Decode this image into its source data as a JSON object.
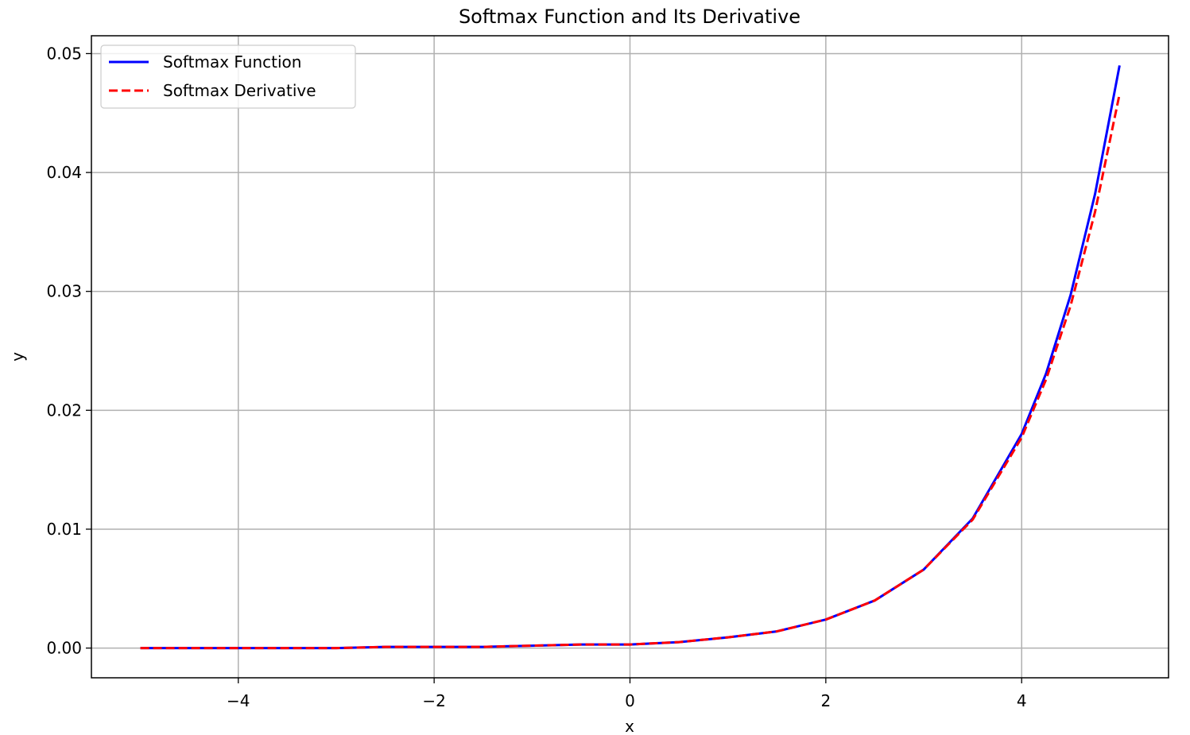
{
  "chart_data": {
    "type": "line",
    "title": "Softmax Function and Its Derivative",
    "xlabel": "x",
    "ylabel": "y",
    "xlim": [
      -5.5,
      5.5
    ],
    "ylim": [
      -0.0025,
      0.0515
    ],
    "xticks": [
      -4,
      -2,
      0,
      2,
      4
    ],
    "xtick_labels": [
      "−4",
      "−2",
      "0",
      "2",
      "4"
    ],
    "yticks": [
      0.0,
      0.01,
      0.02,
      0.03,
      0.04,
      0.05
    ],
    "ytick_labels": [
      "0.00",
      "0.01",
      "0.02",
      "0.03",
      "0.04",
      "0.05"
    ],
    "grid": true,
    "legend_position": "top-left",
    "x": [
      -5,
      -4.5,
      -4,
      -3.5,
      -3,
      -2.5,
      -2,
      -1.5,
      -1,
      -0.5,
      0,
      0.5,
      1,
      1.5,
      2,
      2.5,
      3,
      3.5,
      4,
      4.25,
      4.5,
      4.75,
      5
    ],
    "series": [
      {
        "name": "Softmax Function",
        "color": "#0000ff",
        "style": "solid",
        "values": [
          0.0,
          0.0,
          0.0,
          0.0,
          0.0,
          0.0001,
          0.0001,
          0.0001,
          0.0002,
          0.0003,
          0.0003,
          0.0005,
          0.0009,
          0.0014,
          0.0024,
          0.004,
          0.0066,
          0.0109,
          0.018,
          0.0231,
          0.0297,
          0.0382,
          0.049
        ]
      },
      {
        "name": "Softmax Derivative",
        "color": "#ff0000",
        "style": "dashed",
        "values": [
          0.0,
          0.0,
          0.0,
          0.0,
          0.0,
          0.0001,
          0.0001,
          0.0001,
          0.0002,
          0.0003,
          0.0003,
          0.0005,
          0.0009,
          0.0014,
          0.0024,
          0.004,
          0.0066,
          0.0108,
          0.0177,
          0.0226,
          0.0288,
          0.0367,
          0.0466
        ]
      }
    ]
  }
}
